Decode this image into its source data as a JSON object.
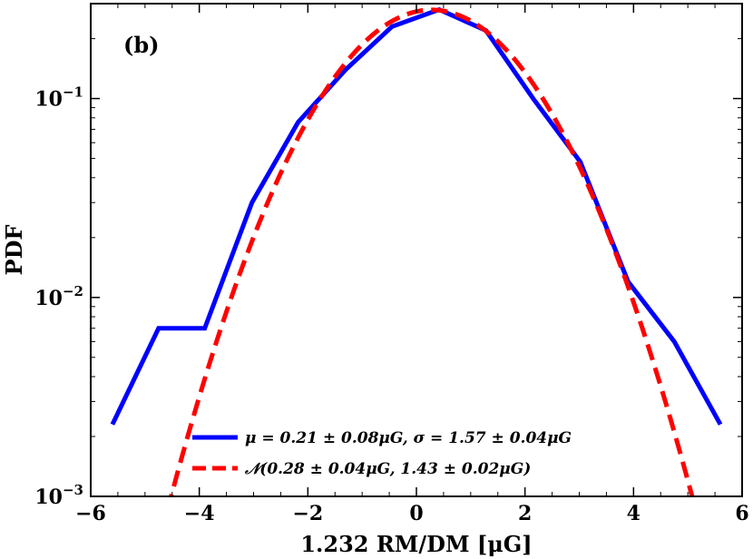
{
  "chart_data": {
    "type": "line",
    "panel_label": "(b)",
    "xlabel": "1.232 RM/DM [μG]",
    "ylabel": "PDF",
    "xlim": [
      -6,
      6
    ],
    "ylim": [
      0.001,
      0.3
    ],
    "y_scale": "log",
    "x_ticks": [
      -6,
      -4,
      -2,
      0,
      2,
      4,
      6
    ],
    "x_tick_labels": [
      "−6",
      "−4",
      "−2",
      "0",
      "2",
      "4",
      "6"
    ],
    "y_ticks": [
      0.001,
      0.01,
      0.1
    ],
    "y_tick_labels": [
      {
        "base": "10",
        "exp": "−3"
      },
      {
        "base": "10",
        "exp": "−2"
      },
      {
        "base": "10",
        "exp": "−1"
      }
    ],
    "legend_position": "bottom-center",
    "series": [
      {
        "name": "μ = 0.21 ± 0.08μG, σ = 1.57 ± 0.04μG",
        "color": "#0000ff",
        "style": "solid",
        "x": [
          -5.6,
          -4.75,
          -3.9,
          -3.03,
          -2.18,
          -1.3,
          -0.45,
          0.42,
          1.28,
          2.15,
          3.02,
          3.9,
          4.75,
          5.6
        ],
        "y": [
          0.0023,
          0.007,
          0.007,
          0.03,
          0.076,
          0.14,
          0.23,
          0.28,
          0.22,
          0.1,
          0.048,
          0.012,
          0.006,
          0.0023
        ]
      },
      {
        "name": "𝒩(0.28 ± 0.04μG, 1.43 ± 0.02μG)",
        "color": "#ff0000",
        "style": "dashed",
        "mu": 0.28,
        "sigma": 1.43,
        "x_range": [
          -4.7,
          5.2
        ]
      }
    ]
  }
}
